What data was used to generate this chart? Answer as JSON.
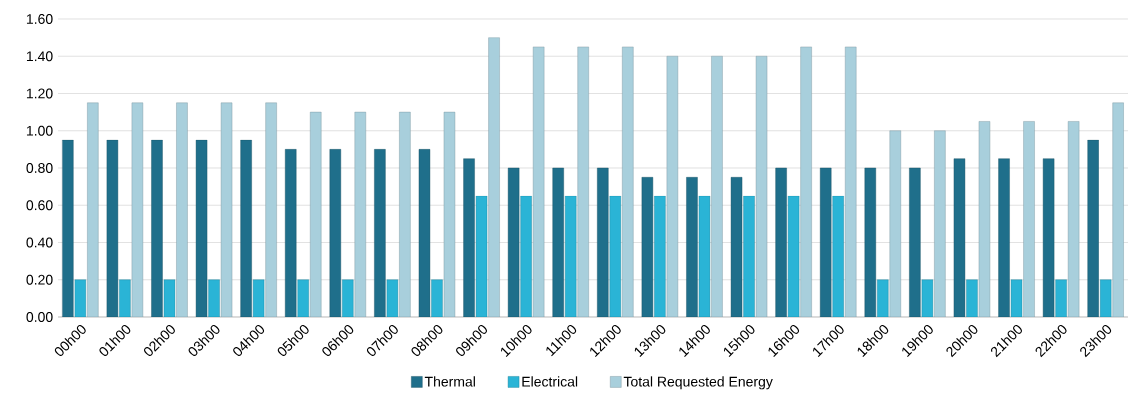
{
  "chart_data": {
    "type": "bar",
    "categories": [
      "00h00",
      "01h00",
      "02h00",
      "03h00",
      "04h00",
      "05h00",
      "06h00",
      "07h00",
      "08h00",
      "09h00",
      "10h00",
      "11h00",
      "12h00",
      "13h00",
      "14h00",
      "15h00",
      "16h00",
      "17h00",
      "18h00",
      "19h00",
      "20h00",
      "21h00",
      "22h00",
      "23h00"
    ],
    "series": [
      {
        "name": "Thermal",
        "color": "#1f6f8b",
        "values": [
          0.95,
          0.95,
          0.95,
          0.95,
          0.95,
          0.9,
          0.9,
          0.9,
          0.9,
          0.85,
          0.8,
          0.8,
          0.8,
          0.75,
          0.75,
          0.75,
          0.8,
          0.8,
          0.8,
          0.8,
          0.85,
          0.85,
          0.85,
          0.95
        ]
      },
      {
        "name": "Electrical",
        "color": "#2ab4d6",
        "values": [
          0.2,
          0.2,
          0.2,
          0.2,
          0.2,
          0.2,
          0.2,
          0.2,
          0.2,
          0.65,
          0.65,
          0.65,
          0.65,
          0.65,
          0.65,
          0.65,
          0.65,
          0.65,
          0.2,
          0.2,
          0.2,
          0.2,
          0.2,
          0.2
        ]
      },
      {
        "name": "Total Requested Energy",
        "color": "#a8cfdc",
        "values": [
          1.15,
          1.15,
          1.15,
          1.15,
          1.15,
          1.1,
          1.1,
          1.1,
          1.1,
          1.5,
          1.45,
          1.45,
          1.45,
          1.4,
          1.4,
          1.4,
          1.45,
          1.45,
          1.0,
          1.0,
          1.05,
          1.05,
          1.05,
          1.15
        ]
      }
    ],
    "ylim": [
      0,
      1.6
    ],
    "yticks": [
      {
        "value": 0,
        "label": "0.00"
      },
      {
        "value": 0.2,
        "label": "0.20"
      },
      {
        "value": 0.4,
        "label": "0.40"
      },
      {
        "value": 0.6,
        "label": "0.60"
      },
      {
        "value": 0.8,
        "label": "0.80"
      },
      {
        "value": 1.0,
        "label": "1.00"
      },
      {
        "value": 1.2,
        "label": "1.20"
      },
      {
        "value": 1.4,
        "label": "1.40"
      },
      {
        "value": 1.6,
        "label": "1.60"
      }
    ],
    "grid": "y",
    "legend": "bottom"
  }
}
